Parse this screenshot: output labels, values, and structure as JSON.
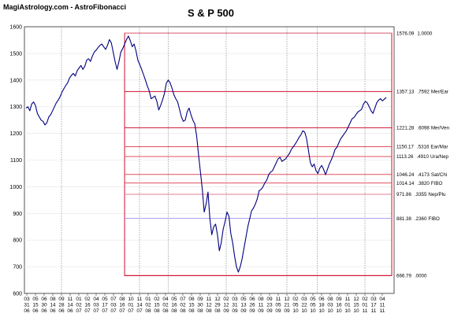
{
  "header": {
    "brand": "MagiAstrology.com - AstroFibonacci",
    "title": "S & P 500"
  },
  "chart_data": {
    "type": "line",
    "title": "S & P 500",
    "ylim": [
      600,
      1600
    ],
    "y_ticks": [
      "600",
      "700",
      "800",
      "900",
      "1000",
      "1100",
      "1200",
      "1300",
      "1400",
      "1500",
      "1600"
    ],
    "x_ticks": [
      [
        "03",
        "31",
        "06"
      ],
      [
        "05",
        "15",
        "06"
      ],
      [
        "06",
        "30",
        "06"
      ],
      [
        "08",
        "14",
        "06"
      ],
      [
        "09",
        "28",
        "06"
      ],
      [
        "11",
        "14",
        "06"
      ],
      [
        "01",
        "02",
        "07"
      ],
      [
        "02",
        "16",
        "07"
      ],
      [
        "04",
        "03",
        "07"
      ],
      [
        "05",
        "17",
        "07"
      ],
      [
        "07",
        "03",
        "07"
      ],
      [
        "08",
        "16",
        "07"
      ],
      [
        "10",
        "01",
        "07"
      ],
      [
        "11",
        "14",
        "07"
      ],
      [
        "01",
        "02",
        "08"
      ],
      [
        "02",
        "15",
        "08"
      ],
      [
        "04",
        "02",
        "08"
      ],
      [
        "05",
        "16",
        "08"
      ],
      [
        "07",
        "02",
        "08"
      ],
      [
        "08",
        "15",
        "08"
      ],
      [
        "09",
        "30",
        "08"
      ],
      [
        "11",
        "12",
        "08"
      ],
      [
        "12",
        "29",
        "08"
      ],
      [
        "02",
        "12",
        "09"
      ],
      [
        "03",
        "31",
        "09"
      ],
      [
        "05",
        "13",
        "09"
      ],
      [
        "06",
        "26",
        "09"
      ],
      [
        "08",
        "11",
        "09"
      ],
      [
        "09",
        "23",
        "09"
      ],
      [
        "11",
        "05",
        "09"
      ],
      [
        "12",
        "21",
        "09"
      ],
      [
        "02",
        "05",
        "10"
      ],
      [
        "03",
        "22",
        "10"
      ],
      [
        "05",
        "05",
        "10"
      ],
      [
        "06",
        "18",
        "10"
      ],
      [
        "08",
        "03",
        "10"
      ],
      [
        "09",
        "16",
        "10"
      ],
      [
        "11",
        "01",
        "10"
      ],
      [
        "12",
        "15",
        "10"
      ],
      [
        "02",
        "01",
        "11"
      ],
      [
        "03",
        "17",
        "11"
      ],
      [
        "04",
        "11",
        "11"
      ]
    ],
    "fib_levels": [
      {
        "value": 1576.09,
        "label": "1576.09",
        "ratio": "1.0000",
        "aspect": "",
        "color": "#e08090"
      },
      {
        "value": 1357.13,
        "label": "1357.13",
        "ratio": ".7592",
        "aspect": "Mer/Ear",
        "color": "#d01030"
      },
      {
        "value": 1221.28,
        "label": "1221.28",
        "ratio": ".6098",
        "aspect": "Mer/Ven",
        "color": "#d01030"
      },
      {
        "value": 1150.17,
        "label": "1150.17",
        "ratio": ".5316",
        "aspect": "Ear/Mar",
        "color": "#e05060"
      },
      {
        "value": 1113.26,
        "label": "1113.26",
        "ratio": ".4910",
        "aspect": "Ura/Nep",
        "color": "#e05060"
      },
      {
        "value": 1046.24,
        "label": "1046.24",
        "ratio": ".4173",
        "aspect": "Sat/Chi",
        "color": "#e05060"
      },
      {
        "value": 1014.14,
        "label": "1014.14",
        "ratio": ".3820",
        "aspect": "FIBO",
        "color": "#e05060"
      },
      {
        "value": 971.86,
        "label": "971.86",
        "ratio": ".3355",
        "aspect": "Nep/Plu",
        "color": "#e08090"
      },
      {
        "value": 881.38,
        "label": "881.38",
        "ratio": ".2360",
        "aspect": "FIBO",
        "color": "#a898e8"
      },
      {
        "value": 666.79,
        "label": "666.79",
        "ratio": ".0000",
        "aspect": "",
        "color": "#d01030"
      }
    ],
    "series": [
      {
        "color": "#000080",
        "values": [
          1295,
          1300,
          1285,
          1310,
          1318,
          1305,
          1275,
          1262,
          1250,
          1245,
          1232,
          1240,
          1262,
          1270,
          1285,
          1300,
          1315,
          1325,
          1338,
          1355,
          1368,
          1380,
          1390,
          1408,
          1418,
          1425,
          1415,
          1435,
          1445,
          1455,
          1440,
          1452,
          1475,
          1480,
          1470,
          1490,
          1505,
          1512,
          1522,
          1530,
          1535,
          1525,
          1515,
          1530,
          1552,
          1540,
          1505,
          1470,
          1440,
          1470,
          1505,
          1518,
          1535,
          1552,
          1565,
          1548,
          1525,
          1535,
          1510,
          1475,
          1458,
          1440,
          1420,
          1400,
          1378,
          1360,
          1330,
          1335,
          1340,
          1320,
          1288,
          1305,
          1325,
          1350,
          1388,
          1400,
          1390,
          1370,
          1345,
          1330,
          1318,
          1290,
          1262,
          1245,
          1250,
          1280,
          1295,
          1270,
          1250,
          1236,
          1190,
          1120,
          1055,
          990,
          905,
          935,
          980,
          880,
          820,
          850,
          860,
          820,
          760,
          790,
          840,
          870,
          905,
          890,
          825,
          790,
          740,
          700,
          680,
          700,
          730,
          770,
          810,
          850,
          880,
          910,
          920,
          935,
          955,
          985,
          990,
          1000,
          1015,
          1025,
          1045,
          1055,
          1060,
          1075,
          1090,
          1105,
          1110,
          1095,
          1100,
          1105,
          1115,
          1125,
          1140,
          1150,
          1160,
          1172,
          1185,
          1195,
          1210,
          1205,
          1180,
          1135,
          1090,
          1075,
          1085,
          1060,
          1050,
          1070,
          1080,
          1065,
          1045,
          1065,
          1085,
          1100,
          1118,
          1140,
          1148,
          1165,
          1180,
          1190,
          1200,
          1210,
          1225,
          1240,
          1255,
          1260,
          1270,
          1280,
          1285,
          1290,
          1310,
          1320,
          1315,
          1300,
          1285,
          1275,
          1295,
          1315,
          1325,
          1330,
          1322,
          1328,
          1335
        ]
      }
    ],
    "grid": true
  }
}
